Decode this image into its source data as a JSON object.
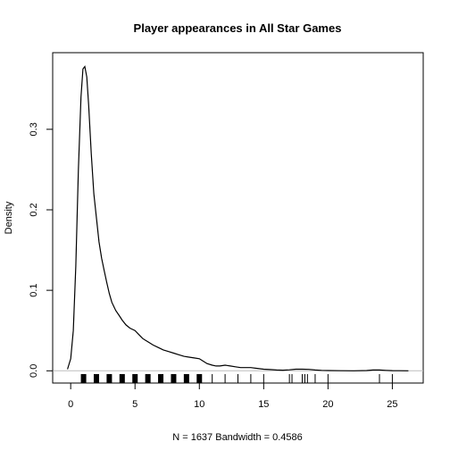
{
  "chart_data": {
    "type": "line",
    "title": "Player appearances in All Star Games",
    "xlabel": "N = 1637   Bandwidth = 0.4586",
    "ylabel": "Density",
    "xlim": [
      -1.4,
      27.4
    ],
    "ylim": [
      -0.0152,
      0.3952
    ],
    "x_ticks": [
      0,
      5,
      10,
      15,
      20,
      25
    ],
    "y_ticks": [
      0.0,
      0.1,
      0.2,
      0.3
    ],
    "x_tick_labels": [
      "0",
      "5",
      "10",
      "15",
      "20",
      "25"
    ],
    "y_tick_labels": [
      "0.0",
      "0.1",
      "0.2",
      "0.3"
    ],
    "zero_line": true,
    "series": [
      {
        "x": [
          -0.25,
          0.0,
          0.2,
          0.4,
          0.6,
          0.8,
          0.95,
          1.1,
          1.25,
          1.4,
          1.6,
          1.8,
          2.0,
          2.2,
          2.4,
          2.6,
          2.8,
          3.0,
          3.2,
          3.5,
          3.8,
          4.0,
          4.3,
          4.6,
          5.0,
          5.3,
          5.6,
          6.0,
          6.4,
          6.8,
          7.2,
          7.6,
          8.0,
          8.4,
          8.8,
          9.2,
          9.6,
          10.0,
          10.3,
          10.6,
          11.0,
          11.3,
          11.6,
          12.0,
          12.4,
          12.8,
          13.2,
          13.6,
          14.0,
          14.5,
          15.0,
          15.5,
          16.0,
          16.5,
          17.0,
          17.5,
          18.0,
          18.5,
          19.0,
          19.5,
          20.0,
          21.0,
          22.0,
          23.0,
          23.5,
          24.0,
          24.5,
          25.0,
          25.5,
          26.25
        ],
        "y": [
          0.002,
          0.015,
          0.05,
          0.13,
          0.25,
          0.34,
          0.375,
          0.378,
          0.365,
          0.33,
          0.27,
          0.22,
          0.19,
          0.16,
          0.14,
          0.125,
          0.11,
          0.096,
          0.085,
          0.075,
          0.068,
          0.063,
          0.057,
          0.053,
          0.05,
          0.045,
          0.04,
          0.036,
          0.032,
          0.029,
          0.026,
          0.024,
          0.022,
          0.02,
          0.018,
          0.017,
          0.016,
          0.015,
          0.012,
          0.009,
          0.007,
          0.006,
          0.006,
          0.007,
          0.006,
          0.005,
          0.004,
          0.004,
          0.004,
          0.003,
          0.002,
          0.0015,
          0.001,
          0.0008,
          0.0012,
          0.002,
          0.002,
          0.0018,
          0.001,
          0.0005,
          0.0003,
          0.0001,
          0.0,
          0.0003,
          0.001,
          0.001,
          0.0005,
          0.0002,
          0.0001,
          0.0
        ]
      }
    ],
    "rug": [
      0.97,
      1.03,
      1.98,
      2.02,
      2.97,
      3.03,
      3.98,
      4.02,
      4.97,
      5.03,
      5.98,
      6.02,
      6.97,
      7.03,
      7.98,
      8.02,
      8.97,
      9.03,
      9.98,
      10.02,
      11,
      12,
      13,
      14,
      15,
      17,
      17.2,
      18,
      18.2,
      18.4,
      19,
      20,
      24,
      25
    ],
    "rug_bold": [
      1,
      2,
      3,
      4,
      5,
      6,
      7,
      8,
      9,
      10
    ]
  }
}
